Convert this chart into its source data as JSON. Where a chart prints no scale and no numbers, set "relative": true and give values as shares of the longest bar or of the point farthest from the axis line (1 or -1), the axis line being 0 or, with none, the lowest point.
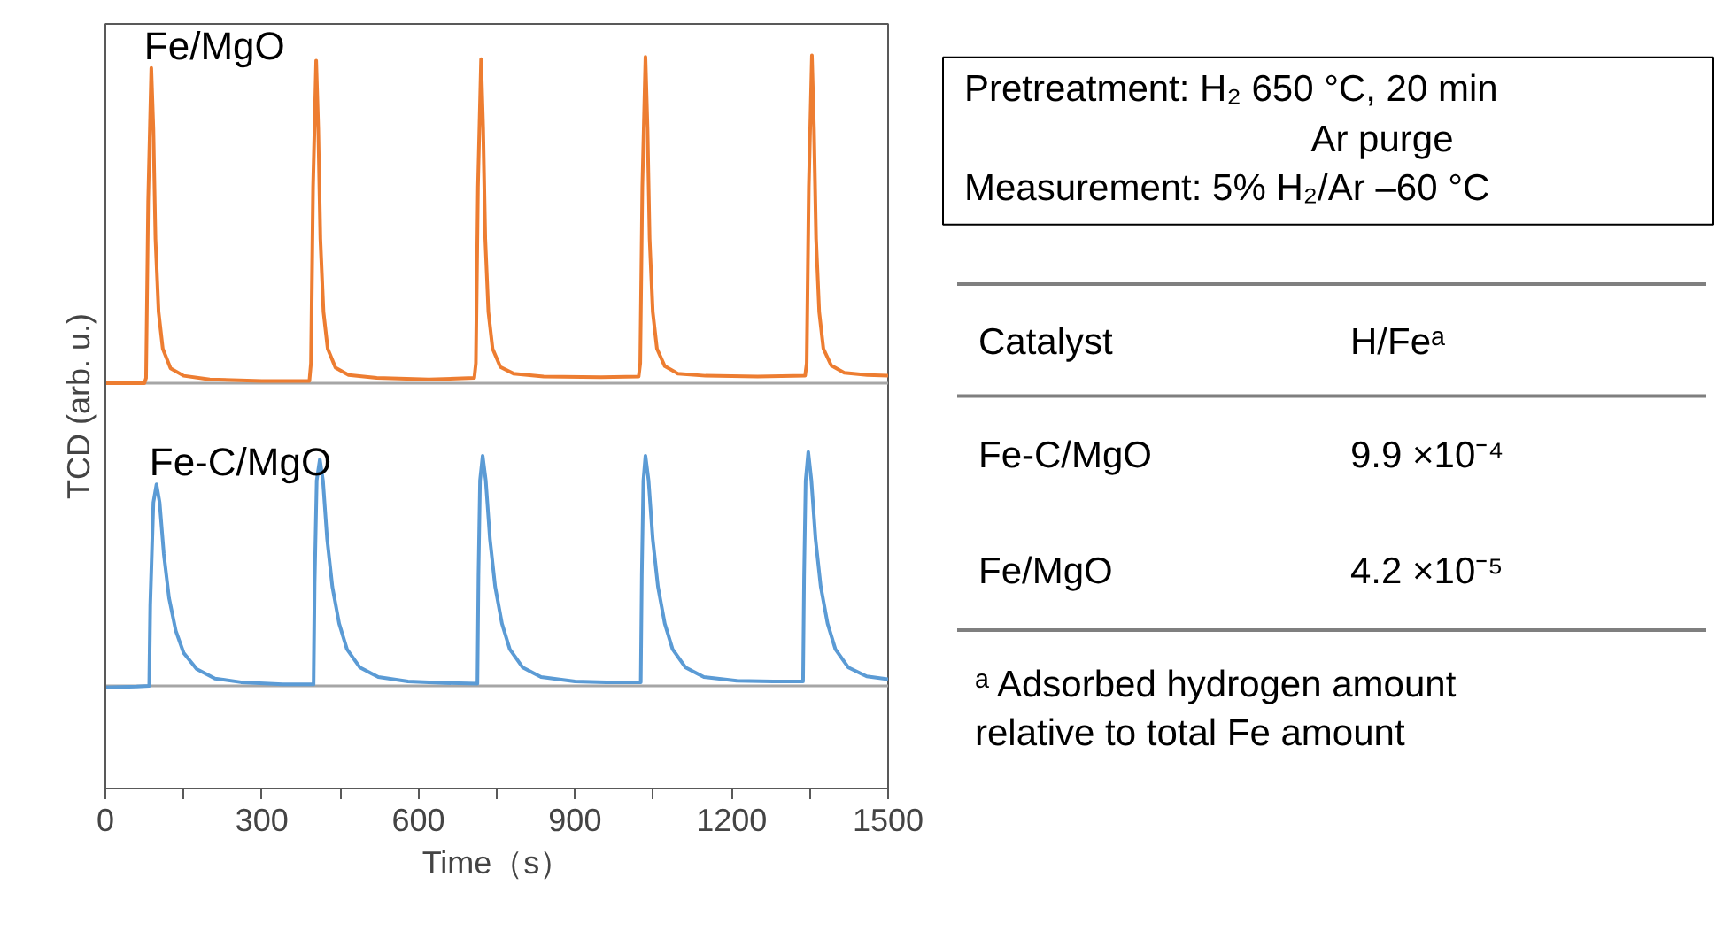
{
  "chart_data": {
    "type": "line",
    "relative": true,
    "xlabel": "Time（s）",
    "ylabel": "TCD (arb. u.)",
    "xlim": [
      0,
      1500
    ],
    "xticks": [
      0,
      {
        "value": 150,
        "label": null
      },
      300,
      {
        "value": 450,
        "label": null
      },
      600,
      {
        "value": 750,
        "label": null
      },
      900,
      {
        "value": 1050,
        "label": null
      },
      1200,
      {
        "value": 1350,
        "label": null
      },
      1500
    ],
    "ref_lines": [
      {
        "axis": "y",
        "value": 0.553,
        "color": "#a6a6a6"
      },
      {
        "axis": "y",
        "value": 0.14,
        "color": "#a6a6a6"
      }
    ],
    "series": [
      {
        "name": "Fe/MgO",
        "color": "#ed7d31",
        "x": [
          0,
          75,
          78,
          82,
          88,
          92,
          96,
          102,
          110,
          125,
          150,
          200,
          300,
          391,
          394,
          398,
          404,
          408,
          412,
          418,
          426,
          441,
          466,
          520,
          620,
          707,
          710,
          714,
          720,
          724,
          728,
          734,
          742,
          757,
          782,
          840,
          950,
          1022,
          1025,
          1029,
          1035,
          1039,
          1043,
          1049,
          1057,
          1072,
          1097,
          1150,
          1250,
          1341,
          1344,
          1348,
          1354,
          1358,
          1362,
          1368,
          1376,
          1391,
          1416,
          1460,
          1500
        ],
        "values": [
          0.553,
          0.553,
          0.56,
          0.8,
          0.983,
          0.9,
          0.75,
          0.65,
          0.6,
          0.573,
          0.563,
          0.558,
          0.556,
          0.556,
          0.58,
          0.82,
          0.993,
          0.9,
          0.75,
          0.65,
          0.6,
          0.574,
          0.564,
          0.56,
          0.558,
          0.56,
          0.58,
          0.82,
          0.995,
          0.9,
          0.75,
          0.65,
          0.6,
          0.575,
          0.566,
          0.562,
          0.561,
          0.562,
          0.58,
          0.82,
          0.998,
          0.9,
          0.75,
          0.65,
          0.6,
          0.576,
          0.566,
          0.563,
          0.562,
          0.563,
          0.58,
          0.82,
          1.0,
          0.9,
          0.75,
          0.65,
          0.6,
          0.577,
          0.567,
          0.564,
          0.563
        ]
      },
      {
        "name": "Fe-C/MgO",
        "color": "#5b9bd5",
        "x": [
          0,
          60,
          84,
          86,
          92,
          98,
          104,
          112,
          122,
          135,
          150,
          175,
          210,
          260,
          340,
          399,
          401,
          405,
          411,
          417,
          425,
          435,
          448,
          463,
          488,
          523,
          580,
          650,
          713,
          715,
          718,
          723,
          729,
          737,
          747,
          760,
          775,
          800,
          835,
          900,
          960,
          1026,
          1028,
          1031,
          1035,
          1041,
          1049,
          1059,
          1072,
          1087,
          1112,
          1147,
          1210,
          1280,
          1337,
          1339,
          1342,
          1347,
          1353,
          1361,
          1371,
          1384,
          1399,
          1424,
          1459,
          1500
        ],
        "values": [
          0.138,
          0.139,
          0.14,
          0.25,
          0.39,
          0.415,
          0.39,
          0.32,
          0.26,
          0.215,
          0.185,
          0.163,
          0.15,
          0.145,
          0.142,
          0.142,
          0.28,
          0.42,
          0.449,
          0.42,
          0.34,
          0.275,
          0.225,
          0.19,
          0.165,
          0.152,
          0.146,
          0.144,
          0.143,
          0.29,
          0.42,
          0.454,
          0.42,
          0.34,
          0.275,
          0.225,
          0.19,
          0.165,
          0.152,
          0.146,
          0.145,
          0.145,
          0.29,
          0.42,
          0.454,
          0.42,
          0.34,
          0.275,
          0.225,
          0.19,
          0.165,
          0.152,
          0.147,
          0.146,
          0.146,
          0.29,
          0.42,
          0.459,
          0.42,
          0.34,
          0.275,
          0.225,
          0.19,
          0.165,
          0.153,
          0.149
        ]
      }
    ],
    "annotations": [
      "Pretreatment: H₂ 650 °C, 20 min",
      "Ar purge",
      "Measurement: 5% H₂/Ar –60 °C",
      "Catalyst",
      "H/Feᵃ",
      "Fe-C/MgO",
      "9.9 ×10⁻⁴",
      "Fe/MgO",
      "4.2 ×10⁻⁵",
      "ᵃ Adsorbed hydrogen amount",
      "relative to total Fe amount"
    ]
  }
}
